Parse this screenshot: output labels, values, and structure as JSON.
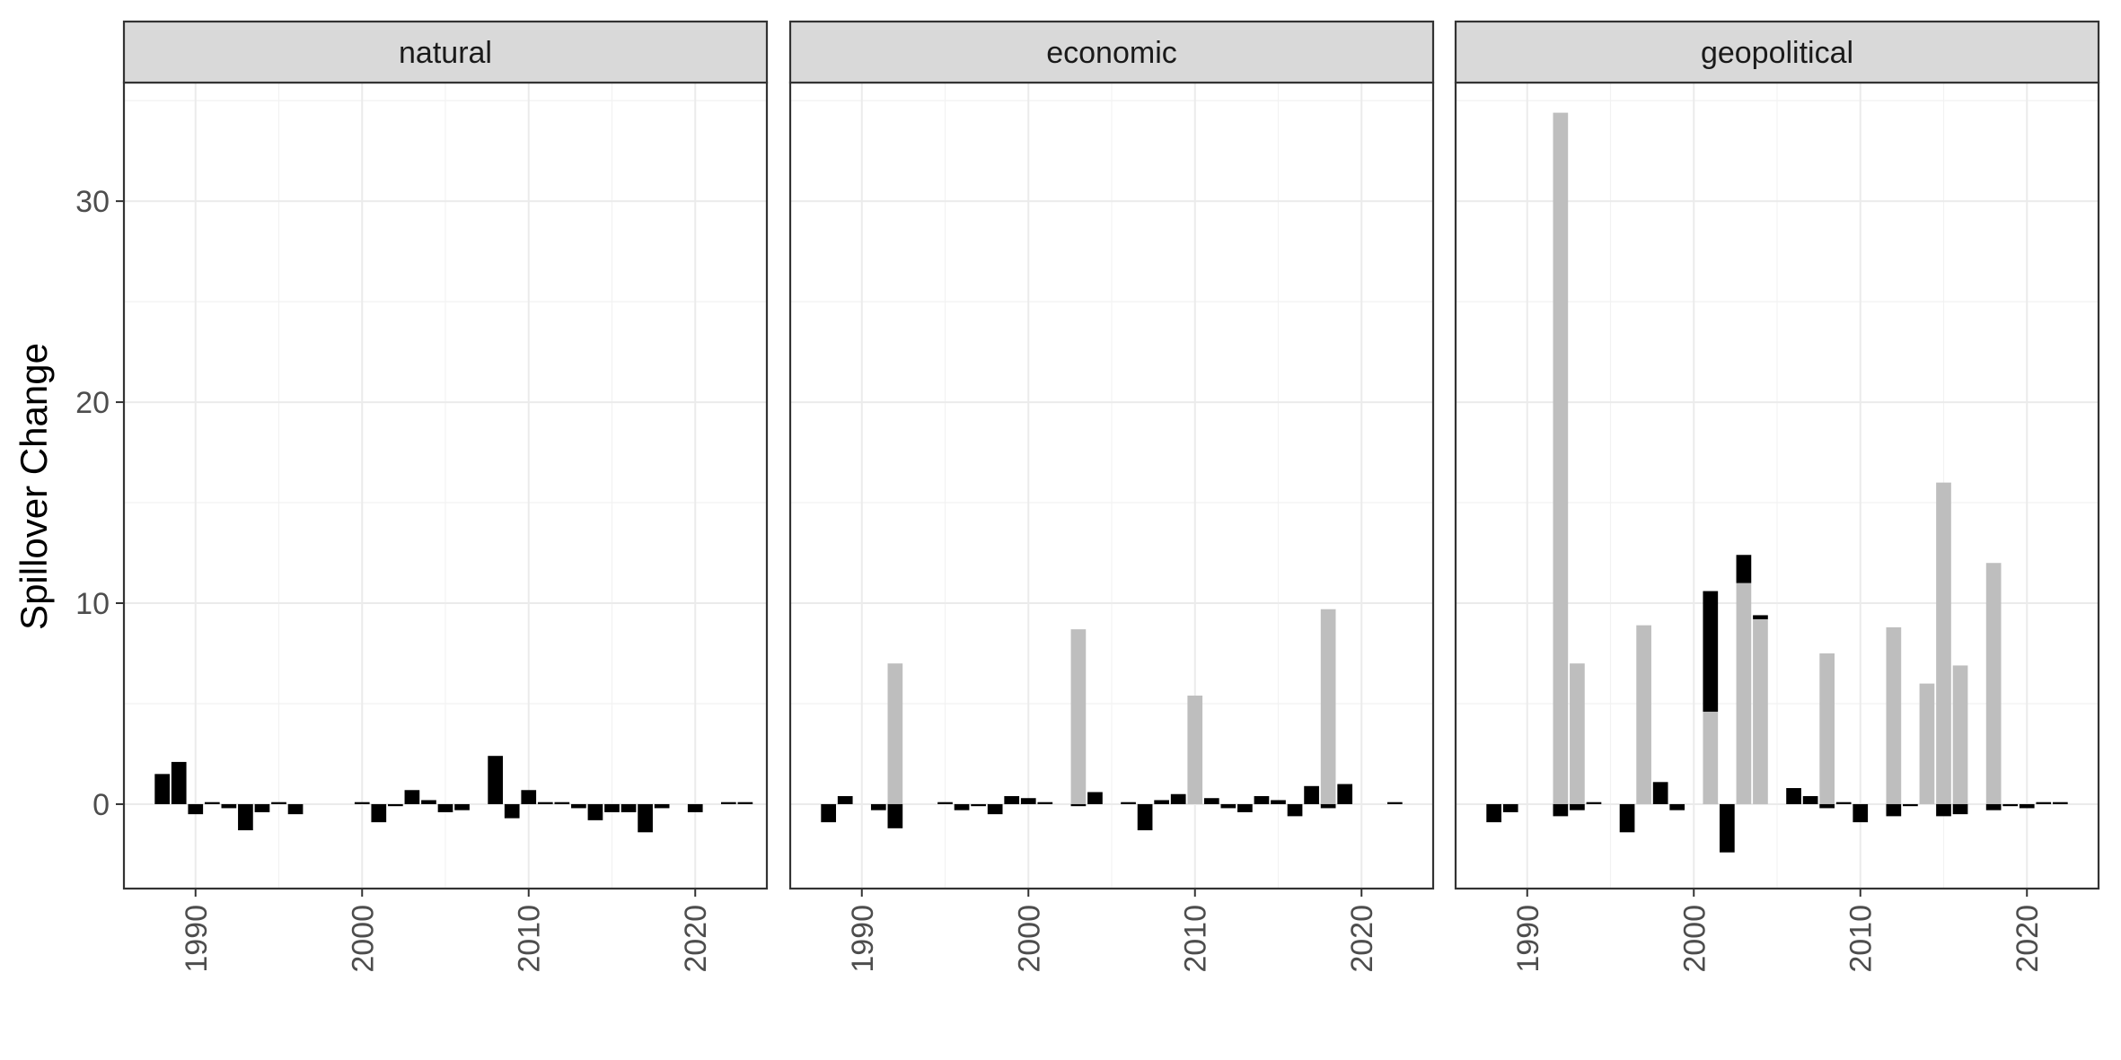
{
  "chart_data": {
    "type": "bar",
    "ylabel": "Spillover Change",
    "xlabel": "",
    "ylim": [
      -4.2,
      35.9
    ],
    "xlim": [
      1985.7,
      2024.3
    ],
    "y_ticks": [
      0,
      10,
      20,
      30
    ],
    "x_ticks": [
      1990,
      2000,
      2010,
      2020
    ],
    "grid": true,
    "legend": "none",
    "colors": {
      "series_black": "#000000",
      "series_grey": "#bebebe"
    },
    "series_names": [
      "black",
      "grey"
    ],
    "panels": [
      {
        "title": "natural",
        "bars": [
          {
            "x": 1988,
            "series": "black",
            "ymin": 0,
            "ymax": 1.5
          },
          {
            "x": 1989,
            "series": "black",
            "ymin": 0,
            "ymax": 2.1
          },
          {
            "x": 1990,
            "series": "black",
            "ymin": -0.5,
            "ymax": 0
          },
          {
            "x": 1991,
            "series": "black",
            "ymin": 0,
            "ymax": 0.1
          },
          {
            "x": 1992,
            "series": "black",
            "ymin": -0.2,
            "ymax": 0
          },
          {
            "x": 1993,
            "series": "black",
            "ymin": -1.3,
            "ymax": 0
          },
          {
            "x": 1994,
            "series": "black",
            "ymin": -0.4,
            "ymax": 0
          },
          {
            "x": 1995,
            "series": "black",
            "ymin": 0,
            "ymax": 0.1
          },
          {
            "x": 1996,
            "series": "black",
            "ymin": -0.5,
            "ymax": 0
          },
          {
            "x": 2000,
            "series": "black",
            "ymin": 0,
            "ymax": 0.1
          },
          {
            "x": 2001,
            "series": "black",
            "ymin": -0.9,
            "ymax": 0
          },
          {
            "x": 2002,
            "series": "black",
            "ymin": -0.1,
            "ymax": 0
          },
          {
            "x": 2003,
            "series": "black",
            "ymin": 0,
            "ymax": 0.7
          },
          {
            "x": 2004,
            "series": "black",
            "ymin": 0,
            "ymax": 0.2
          },
          {
            "x": 2005,
            "series": "black",
            "ymin": -0.4,
            "ymax": 0
          },
          {
            "x": 2006,
            "series": "black",
            "ymin": -0.3,
            "ymax": 0
          },
          {
            "x": 2008,
            "series": "black",
            "ymin": 0,
            "ymax": 2.4
          },
          {
            "x": 2009,
            "series": "black",
            "ymin": -0.7,
            "ymax": 0
          },
          {
            "x": 2010,
            "series": "black",
            "ymin": 0,
            "ymax": 0.7
          },
          {
            "x": 2011,
            "series": "black",
            "ymin": 0,
            "ymax": 0.1
          },
          {
            "x": 2012,
            "series": "black",
            "ymin": 0,
            "ymax": 0.1
          },
          {
            "x": 2013,
            "series": "black",
            "ymin": -0.2,
            "ymax": 0
          },
          {
            "x": 2014,
            "series": "black",
            "ymin": -0.8,
            "ymax": 0
          },
          {
            "x": 2015,
            "series": "black",
            "ymin": -0.4,
            "ymax": 0
          },
          {
            "x": 2016,
            "series": "black",
            "ymin": -0.4,
            "ymax": 0
          },
          {
            "x": 2017,
            "series": "black",
            "ymin": -1.4,
            "ymax": 0
          },
          {
            "x": 2018,
            "series": "black",
            "ymin": -0.2,
            "ymax": 0
          },
          {
            "x": 2020,
            "series": "black",
            "ymin": -0.4,
            "ymax": 0
          },
          {
            "x": 2022,
            "series": "black",
            "ymin": 0,
            "ymax": 0.1
          },
          {
            "x": 2023,
            "series": "black",
            "ymin": 0,
            "ymax": 0.1
          }
        ]
      },
      {
        "title": "economic",
        "bars": [
          {
            "x": 1988,
            "series": "black",
            "ymin": -0.9,
            "ymax": 0
          },
          {
            "x": 1989,
            "series": "black",
            "ymin": 0,
            "ymax": 0.4
          },
          {
            "x": 1991,
            "series": "black",
            "ymin": -0.3,
            "ymax": 0
          },
          {
            "x": 1992,
            "series": "black",
            "ymin": -1.2,
            "ymax": 0
          },
          {
            "x": 1992,
            "series": "grey",
            "ymin": 0,
            "ymax": 7.0
          },
          {
            "x": 1995,
            "series": "black",
            "ymin": 0,
            "ymax": 0.1
          },
          {
            "x": 1996,
            "series": "black",
            "ymin": -0.3,
            "ymax": 0
          },
          {
            "x": 1997,
            "series": "black",
            "ymin": -0.1,
            "ymax": 0
          },
          {
            "x": 1998,
            "series": "black",
            "ymin": -0.5,
            "ymax": 0
          },
          {
            "x": 1999,
            "series": "black",
            "ymin": 0,
            "ymax": 0.4
          },
          {
            "x": 2000,
            "series": "black",
            "ymin": 0,
            "ymax": 0.3
          },
          {
            "x": 2001,
            "series": "black",
            "ymin": 0,
            "ymax": 0.1
          },
          {
            "x": 2003,
            "series": "grey",
            "ymin": 0,
            "ymax": 8.7
          },
          {
            "x": 2003,
            "series": "black",
            "ymin": -0.1,
            "ymax": 0
          },
          {
            "x": 2004,
            "series": "black",
            "ymin": 0,
            "ymax": 0.6
          },
          {
            "x": 2006,
            "series": "black",
            "ymin": 0,
            "ymax": 0.1
          },
          {
            "x": 2007,
            "series": "black",
            "ymin": -1.3,
            "ymax": 0
          },
          {
            "x": 2008,
            "series": "black",
            "ymin": 0,
            "ymax": 0.2
          },
          {
            "x": 2009,
            "series": "black",
            "ymin": 0,
            "ymax": 0.5
          },
          {
            "x": 2010,
            "series": "grey",
            "ymin": 0,
            "ymax": 5.4
          },
          {
            "x": 2011,
            "series": "black",
            "ymin": 0,
            "ymax": 0.3
          },
          {
            "x": 2012,
            "series": "black",
            "ymin": -0.2,
            "ymax": 0
          },
          {
            "x": 2013,
            "series": "black",
            "ymin": -0.4,
            "ymax": 0
          },
          {
            "x": 2014,
            "series": "black",
            "ymin": 0,
            "ymax": 0.4
          },
          {
            "x": 2015,
            "series": "black",
            "ymin": 0,
            "ymax": 0.2
          },
          {
            "x": 2016,
            "series": "black",
            "ymin": -0.6,
            "ymax": 0
          },
          {
            "x": 2017,
            "series": "black",
            "ymin": 0,
            "ymax": 0.9
          },
          {
            "x": 2018,
            "series": "grey",
            "ymin": 0,
            "ymax": 9.7
          },
          {
            "x": 2018,
            "series": "black",
            "ymin": -0.2,
            "ymax": 0
          },
          {
            "x": 2019,
            "series": "black",
            "ymin": 0,
            "ymax": 1.0
          },
          {
            "x": 2022,
            "series": "black",
            "ymin": 0,
            "ymax": 0.1
          }
        ]
      },
      {
        "title": "geopolitical",
        "bars": [
          {
            "x": 1988,
            "series": "black",
            "ymin": -0.9,
            "ymax": 0
          },
          {
            "x": 1989,
            "series": "black",
            "ymin": -0.4,
            "ymax": 0
          },
          {
            "x": 1992,
            "series": "grey",
            "ymin": 0,
            "ymax": 34.4
          },
          {
            "x": 1992,
            "series": "black",
            "ymin": -0.6,
            "ymax": 0
          },
          {
            "x": 1993,
            "series": "grey",
            "ymin": 0,
            "ymax": 7.0
          },
          {
            "x": 1993,
            "series": "black",
            "ymin": -0.3,
            "ymax": 0
          },
          {
            "x": 1994,
            "series": "black",
            "ymin": 0,
            "ymax": 0.1
          },
          {
            "x": 1996,
            "series": "black",
            "ymin": -1.4,
            "ymax": 0
          },
          {
            "x": 1997,
            "series": "grey",
            "ymin": 0,
            "ymax": 8.9
          },
          {
            "x": 1998,
            "series": "black",
            "ymin": 0,
            "ymax": 1.1
          },
          {
            "x": 1999,
            "series": "black",
            "ymin": -0.3,
            "ymax": 0
          },
          {
            "x": 2001,
            "series": "grey",
            "ymin": 0,
            "ymax": 4.6
          },
          {
            "x": 2001,
            "series": "black",
            "ymin": 4.6,
            "ymax": 10.6
          },
          {
            "x": 2002,
            "series": "black",
            "ymin": -2.4,
            "ymax": 0
          },
          {
            "x": 2003,
            "series": "grey",
            "ymin": 0,
            "ymax": 11.0
          },
          {
            "x": 2003,
            "series": "black",
            "ymin": 11.0,
            "ymax": 12.4
          },
          {
            "x": 2004,
            "series": "grey",
            "ymin": 0,
            "ymax": 9.2
          },
          {
            "x": 2004,
            "series": "black",
            "ymin": 9.2,
            "ymax": 9.4
          },
          {
            "x": 2006,
            "series": "black",
            "ymin": 0,
            "ymax": 0.8
          },
          {
            "x": 2007,
            "series": "black",
            "ymin": 0,
            "ymax": 0.4
          },
          {
            "x": 2008,
            "series": "grey",
            "ymin": 0,
            "ymax": 7.5
          },
          {
            "x": 2008,
            "series": "black",
            "ymin": -0.2,
            "ymax": 0
          },
          {
            "x": 2009,
            "series": "black",
            "ymin": 0,
            "ymax": 0.1
          },
          {
            "x": 2010,
            "series": "black",
            "ymin": -0.9,
            "ymax": 0
          },
          {
            "x": 2012,
            "series": "grey",
            "ymin": 0,
            "ymax": 8.8
          },
          {
            "x": 2012,
            "series": "black",
            "ymin": -0.6,
            "ymax": 0
          },
          {
            "x": 2013,
            "series": "black",
            "ymin": -0.1,
            "ymax": 0
          },
          {
            "x": 2014,
            "series": "grey",
            "ymin": 0,
            "ymax": 6.0
          },
          {
            "x": 2015,
            "series": "grey",
            "ymin": 0,
            "ymax": 16.0
          },
          {
            "x": 2015,
            "series": "black",
            "ymin": -0.6,
            "ymax": 0
          },
          {
            "x": 2016,
            "series": "grey",
            "ymin": 0,
            "ymax": 6.9
          },
          {
            "x": 2016,
            "series": "black",
            "ymin": -0.5,
            "ymax": 0
          },
          {
            "x": 2018,
            "series": "grey",
            "ymin": 0,
            "ymax": 12.0
          },
          {
            "x": 2018,
            "series": "black",
            "ymin": -0.3,
            "ymax": 0
          },
          {
            "x": 2019,
            "series": "black",
            "ymin": -0.1,
            "ymax": 0
          },
          {
            "x": 2020,
            "series": "black",
            "ymin": -0.2,
            "ymax": 0
          },
          {
            "x": 2021,
            "series": "black",
            "ymin": 0,
            "ymax": 0.1
          },
          {
            "x": 2022,
            "series": "black",
            "ymin": 0,
            "ymax": 0.1
          }
        ]
      }
    ]
  }
}
